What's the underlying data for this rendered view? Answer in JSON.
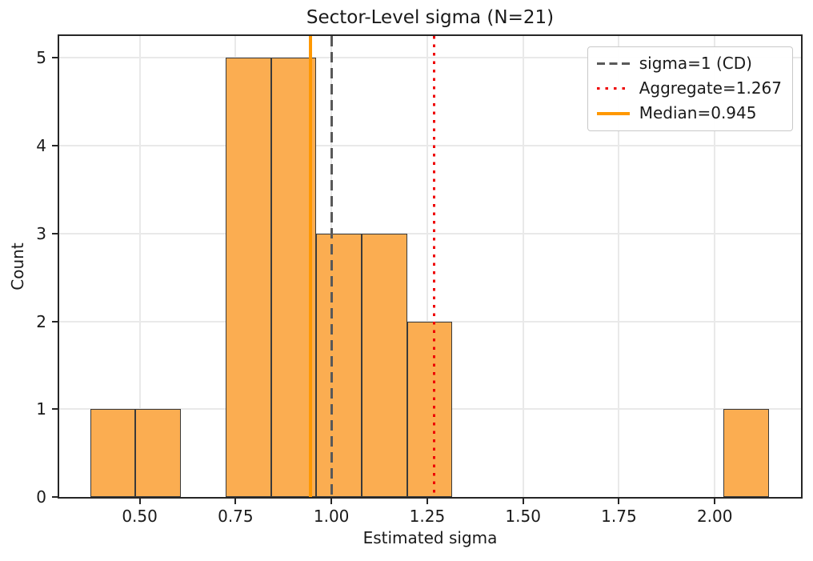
{
  "chart_data": {
    "type": "bar",
    "subtype": "histogram",
    "title": "Sector-Level sigma (N=21)",
    "xlabel": "Estimated sigma",
    "ylabel": "Count",
    "n_total": 21,
    "xlim": [
      0.29,
      2.225
    ],
    "ylim": [
      0,
      5.25
    ],
    "xticks": [
      0.5,
      0.75,
      1.0,
      1.25,
      1.5,
      1.75,
      2.0
    ],
    "xtick_labels": [
      "0.50",
      "0.75",
      "1.00",
      "1.25",
      "1.50",
      "1.75",
      "2.00"
    ],
    "yticks": [
      0,
      1,
      2,
      3,
      4,
      5
    ],
    "ytick_labels": [
      "0",
      "1",
      "2",
      "3",
      "4",
      "5"
    ],
    "grid": true,
    "legend_position": "upper right",
    "histogram": {
      "bin_edges": [
        0.371,
        0.489,
        0.607,
        0.725,
        0.843,
        0.961,
        1.079,
        1.197,
        1.315,
        1.433,
        1.551,
        1.669,
        1.787,
        1.905,
        2.023,
        2.141
      ],
      "counts": [
        1,
        1,
        0,
        5,
        5,
        3,
        3,
        2,
        0,
        0,
        0,
        0,
        0,
        0,
        1
      ]
    },
    "vlines": [
      {
        "x": 1.0,
        "style": "dashed",
        "color": "#595959",
        "label": "sigma=1 (CD)"
      },
      {
        "x": 1.267,
        "style": "dotted",
        "color": "#ee0000",
        "label": "Aggregate=1.267"
      },
      {
        "x": 0.945,
        "style": "solid",
        "color": "#ff9800",
        "label": "Median=0.945"
      }
    ],
    "colors": {
      "bar_fill": "#fbad51",
      "bar_edge": "#3a3a3a",
      "spine": "#262626",
      "grid": "#e9e9e9",
      "legend_border": "#c9c9c9",
      "text": "#1a1a1a",
      "background": "#ffffff"
    }
  }
}
